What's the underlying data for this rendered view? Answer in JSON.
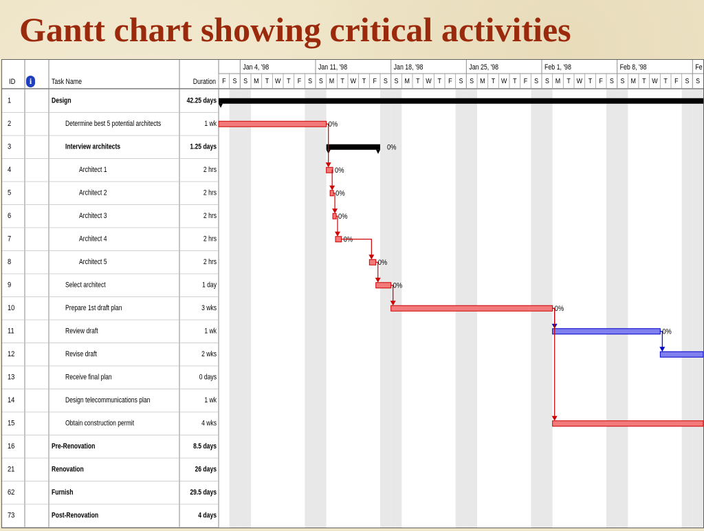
{
  "slide": {
    "title": "Gantt chart showing critical activities"
  },
  "table": {
    "headers": {
      "id": "ID",
      "task_name": "Task Name",
      "duration": "Duration"
    },
    "rows": [
      {
        "id": "1",
        "name": "Design",
        "duration": "42.25 days",
        "level": 0,
        "summary": true
      },
      {
        "id": "2",
        "name": "Determine best 5 potential architects",
        "duration": "1 wk",
        "level": 1,
        "summary": false
      },
      {
        "id": "3",
        "name": "Interview architects",
        "duration": "1.25 days",
        "level": 1,
        "summary": true
      },
      {
        "id": "4",
        "name": "Architect 1",
        "duration": "2 hrs",
        "level": 2,
        "summary": false
      },
      {
        "id": "5",
        "name": "Architect 2",
        "duration": "2 hrs",
        "level": 2,
        "summary": false
      },
      {
        "id": "6",
        "name": "Architect 3",
        "duration": "2 hrs",
        "level": 2,
        "summary": false
      },
      {
        "id": "7",
        "name": "Architect 4",
        "duration": "2 hrs",
        "level": 2,
        "summary": false
      },
      {
        "id": "8",
        "name": "Architect 5",
        "duration": "2 hrs",
        "level": 2,
        "summary": false
      },
      {
        "id": "9",
        "name": "Select architect",
        "duration": "1 day",
        "level": 1,
        "summary": false
      },
      {
        "id": "10",
        "name": "Prepare 1st draft plan",
        "duration": "3 wks",
        "level": 1,
        "summary": false
      },
      {
        "id": "11",
        "name": "Review draft",
        "duration": "1 wk",
        "level": 1,
        "summary": false
      },
      {
        "id": "12",
        "name": "Revise draft",
        "duration": "2 wks",
        "level": 1,
        "summary": false
      },
      {
        "id": "13",
        "name": "Receive final plan",
        "duration": "0 days",
        "level": 1,
        "summary": false
      },
      {
        "id": "14",
        "name": "Design telecommunications plan",
        "duration": "1 wk",
        "level": 1,
        "summary": false
      },
      {
        "id": "15",
        "name": "Obtain construction permit",
        "duration": "4 wks",
        "level": 1,
        "summary": false
      },
      {
        "id": "16",
        "name": "Pre-Renovation",
        "duration": "8.5 days",
        "level": 0,
        "summary": true
      },
      {
        "id": "21",
        "name": "Renovation",
        "duration": "26 days",
        "level": 0,
        "summary": true
      },
      {
        "id": "62",
        "name": "Furnish",
        "duration": "29.5 days",
        "level": 0,
        "summary": true
      },
      {
        "id": "73",
        "name": "Post-Renovation",
        "duration": "4 days",
        "level": 0,
        "summary": true
      }
    ]
  },
  "timescale": {
    "weeks": [
      "Jan 4, '98",
      "Jan 11, '98",
      "Jan 18, '98",
      "Jan 25, '98",
      "Feb 1, '98",
      "Feb 8, '98",
      "Fe"
    ],
    "days": [
      "F",
      "S",
      "S",
      "M",
      "T",
      "W",
      "T",
      "F",
      "S",
      "S",
      "M",
      "T",
      "W",
      "T",
      "F",
      "S",
      "S",
      "M",
      "T",
      "W",
      "T",
      "F",
      "S",
      "S",
      "M",
      "T",
      "W",
      "T",
      "F",
      "S",
      "S",
      "M",
      "T",
      "W",
      "T",
      "F",
      "S",
      "S",
      "M",
      "T",
      "W",
      "T",
      "F",
      "S",
      "S"
    ]
  },
  "chart_data": {
    "type": "gantt",
    "title": "Gantt chart showing critical activities",
    "axis_start": "1998-01-02",
    "axis_end": "1998-02-16",
    "colors": {
      "critical": "#f27a7a",
      "critical_border": "#cc0000",
      "noncritical": "#7f7fee",
      "noncritical_border": "#0000cc",
      "summary": "#000000",
      "weekend": "#e8e8e8"
    },
    "bars": [
      {
        "row": 0,
        "kind": "summary",
        "start": "1998-01-02",
        "end": "1998-02-16",
        "label": ""
      },
      {
        "row": 1,
        "kind": "critical",
        "start": "1998-01-02",
        "end": "1998-01-12",
        "label": "0%"
      },
      {
        "row": 2,
        "kind": "summary",
        "start": "1998-01-12",
        "end": "1998-01-17",
        "label": "0%"
      },
      {
        "row": 3,
        "kind": "critical",
        "start": "1998-01-12",
        "end": "1998-01-12.6",
        "label": "0%"
      },
      {
        "row": 4,
        "kind": "critical",
        "start": "1998-01-12.35",
        "end": "1998-01-12.5",
        "label": "0%"
      },
      {
        "row": 5,
        "kind": "critical",
        "start": "1998-01-12.6",
        "end": "1998-01-12.75",
        "label": "0%"
      },
      {
        "row": 6,
        "kind": "critical",
        "start": "1998-01-12.85",
        "end": "1998-01-13.4",
        "label": "0%"
      },
      {
        "row": 7,
        "kind": "critical",
        "start": "1998-01-16",
        "end": "1998-01-16.6",
        "label": "0%"
      },
      {
        "row": 8,
        "kind": "critical",
        "start": "1998-01-16.6",
        "end": "1998-01-18",
        "label": "0%"
      },
      {
        "row": 9,
        "kind": "critical",
        "start": "1998-01-18",
        "end": "1998-02-02",
        "label": "0%"
      },
      {
        "row": 10,
        "kind": "noncritical",
        "start": "1998-02-02",
        "end": "1998-02-12",
        "label": "0%"
      },
      {
        "row": 11,
        "kind": "noncritical",
        "start": "1998-02-12",
        "end": "1998-02-16",
        "label": ""
      },
      {
        "row": 14,
        "kind": "critical",
        "start": "1998-02-02",
        "end": "1998-02-16",
        "label": ""
      }
    ],
    "links": [
      {
        "from": 1,
        "to": 3
      },
      {
        "from": 3,
        "to": 4
      },
      {
        "from": 4,
        "to": 5
      },
      {
        "from": 5,
        "to": 6
      },
      {
        "from": 6,
        "to": 7
      },
      {
        "from": 7,
        "to": 8
      },
      {
        "from": 8,
        "to": 9
      },
      {
        "from": 9,
        "to": 10
      },
      {
        "from": 10,
        "to": 11
      },
      {
        "from": 9,
        "to": 14
      }
    ]
  }
}
